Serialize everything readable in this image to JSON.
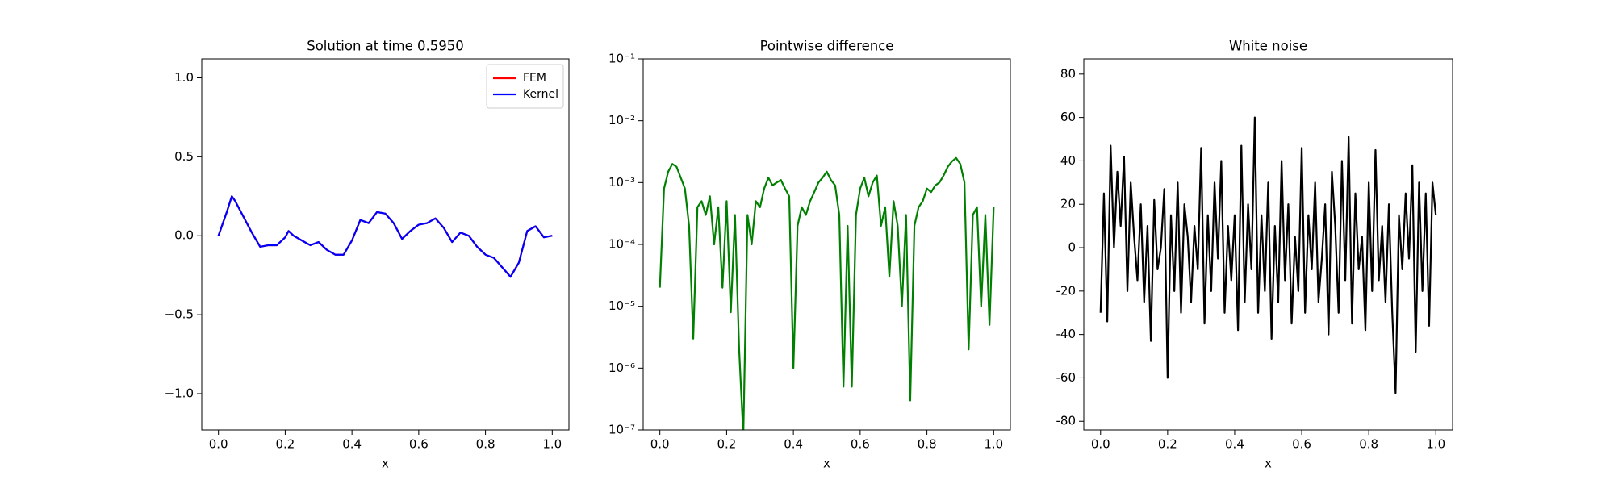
{
  "chart_data": [
    {
      "type": "line",
      "title": "Solution at time 0.5950",
      "xlabel": "x",
      "x": [
        0,
        0.025,
        0.04,
        0.05,
        0.075,
        0.1,
        0.125,
        0.15,
        0.175,
        0.2,
        0.21,
        0.225,
        0.25,
        0.275,
        0.3,
        0.325,
        0.35,
        0.375,
        0.4,
        0.425,
        0.45,
        0.475,
        0.5,
        0.525,
        0.55,
        0.575,
        0.6,
        0.625,
        0.65,
        0.675,
        0.7,
        0.725,
        0.75,
        0.775,
        0.8,
        0.825,
        0.85,
        0.875,
        0.9,
        0.925,
        0.95,
        0.975,
        1.0
      ],
      "series": [
        {
          "name": "FEM",
          "color": "#ff0000",
          "values": [
            0,
            0.15,
            0.25,
            0.22,
            0.12,
            0.02,
            -0.07,
            -0.06,
            -0.06,
            -0.01,
            0.03,
            0,
            -0.03,
            -0.06,
            -0.04,
            -0.09,
            -0.12,
            -0.12,
            -0.03,
            0.1,
            0.08,
            0.15,
            0.14,
            0.08,
            -0.02,
            0.03,
            0.07,
            0.08,
            0.11,
            0.05,
            -0.04,
            0.02,
            0,
            -0.07,
            -0.12,
            -0.14,
            -0.2,
            -0.26,
            -0.17,
            0.03,
            0.06,
            -0.01,
            0
          ]
        },
        {
          "name": "Kernel",
          "color": "#0000ff",
          "values": [
            0,
            0.15,
            0.25,
            0.22,
            0.12,
            0.02,
            -0.07,
            -0.06,
            -0.06,
            -0.01,
            0.03,
            0,
            -0.03,
            -0.06,
            -0.04,
            -0.09,
            -0.12,
            -0.12,
            -0.03,
            0.1,
            0.08,
            0.15,
            0.14,
            0.08,
            -0.02,
            0.03,
            0.07,
            0.08,
            0.11,
            0.05,
            -0.04,
            0.02,
            0,
            -0.07,
            -0.12,
            -0.14,
            -0.2,
            -0.26,
            -0.17,
            0.03,
            0.06,
            -0.01,
            0
          ]
        }
      ],
      "xlim": [
        -0.05,
        1.05
      ],
      "ylim": [
        -1.23,
        1.12
      ],
      "xticks": [
        {
          "value": 0,
          "label": "0.0"
        },
        {
          "value": 0.2,
          "label": "0.2"
        },
        {
          "value": 0.4,
          "label": "0.4"
        },
        {
          "value": 0.6,
          "label": "0.6"
        },
        {
          "value": 0.8,
          "label": "0.8"
        },
        {
          "value": 1,
          "label": "1.0"
        }
      ],
      "yticks": [
        {
          "value": -1,
          "label": "−1.0"
        },
        {
          "value": -0.5,
          "label": "−0.5"
        },
        {
          "value": 0,
          "label": "0.0"
        },
        {
          "value": 0.5,
          "label": "0.5"
        },
        {
          "value": 1,
          "label": "1.0"
        }
      ],
      "legend": "upper right"
    },
    {
      "type": "line",
      "title": "Pointwise difference",
      "xlabel": "x",
      "yscale": "log",
      "x": [
        0,
        0.0125,
        0.025,
        0.0375,
        0.05,
        0.0625,
        0.075,
        0.0875,
        0.1,
        0.1125,
        0.125,
        0.1375,
        0.15,
        0.1625,
        0.175,
        0.1875,
        0.2,
        0.2125,
        0.225,
        0.2375,
        0.25,
        0.2625,
        0.275,
        0.2875,
        0.3,
        0.3125,
        0.325,
        0.3375,
        0.35,
        0.3625,
        0.375,
        0.3875,
        0.4,
        0.4125,
        0.425,
        0.4375,
        0.45,
        0.4625,
        0.475,
        0.4875,
        0.5,
        0.5125,
        0.525,
        0.5375,
        0.55,
        0.5625,
        0.575,
        0.5875,
        0.6,
        0.6125,
        0.625,
        0.6375,
        0.65,
        0.6625,
        0.675,
        0.6875,
        0.7,
        0.7125,
        0.725,
        0.7375,
        0.75,
        0.7625,
        0.775,
        0.7875,
        0.8,
        0.8125,
        0.825,
        0.8375,
        0.85,
        0.8625,
        0.875,
        0.8875,
        0.9,
        0.9125,
        0.925,
        0.9375,
        0.95,
        0.9625,
        0.975,
        0.9875,
        1.0
      ],
      "series": [
        {
          "name": "Pointwise difference",
          "color": "#008000",
          "values": [
            2e-05,
            0.0008,
            0.0015,
            0.002,
            0.0018,
            0.0012,
            0.0008,
            0.0002,
            3e-06,
            0.0004,
            0.0005,
            0.0003,
            0.0006,
            0.0001,
            0.0004,
            2e-05,
            0.0005,
            8e-06,
            0.0003,
            2e-06,
            8e-08,
            0.0003,
            0.0001,
            0.0005,
            0.0004,
            0.0008,
            0.0012,
            0.0009,
            0.001,
            0.0011,
            0.0008,
            0.0006,
            1e-06,
            0.0002,
            0.0004,
            0.0003,
            0.0005,
            0.0007,
            0.001,
            0.0012,
            0.0015,
            0.0011,
            0.0009,
            0.0003,
            5e-07,
            0.0002,
            5e-07,
            0.0003,
            0.0008,
            0.0012,
            0.0006,
            0.001,
            0.0013,
            0.0002,
            0.0004,
            3e-05,
            0.0005,
            0.0002,
            1e-05,
            0.0003,
            3e-07,
            0.0002,
            0.0004,
            0.0005,
            0.0008,
            0.0007,
            0.0009,
            0.001,
            0.0013,
            0.0018,
            0.0022,
            0.0025,
            0.002,
            0.001,
            2e-06,
            0.0003,
            0.0004,
            1e-05,
            0.0003,
            5e-06,
            0.0004
          ]
        }
      ],
      "xlim": [
        -0.05,
        1.05
      ],
      "ylim": [
        1e-07,
        0.1
      ],
      "xticks": [
        {
          "value": 0,
          "label": "0.0"
        },
        {
          "value": 0.2,
          "label": "0.2"
        },
        {
          "value": 0.4,
          "label": "0.4"
        },
        {
          "value": 0.6,
          "label": "0.6"
        },
        {
          "value": 0.8,
          "label": "0.8"
        },
        {
          "value": 1,
          "label": "1.0"
        }
      ],
      "yticks": [
        {
          "value": 1e-07,
          "label": "10⁻⁷"
        },
        {
          "value": 1e-06,
          "label": "10⁻⁶"
        },
        {
          "value": 1e-05,
          "label": "10⁻⁵"
        },
        {
          "value": 0.0001,
          "label": "10⁻⁴"
        },
        {
          "value": 0.001,
          "label": "10⁻³"
        },
        {
          "value": 0.01,
          "label": "10⁻²"
        },
        {
          "value": 0.1,
          "label": "10⁻¹"
        }
      ]
    },
    {
      "type": "line",
      "title": "White noise",
      "xlabel": "x",
      "x": [
        0,
        0.01,
        0.02,
        0.03,
        0.04,
        0.05,
        0.06,
        0.07,
        0.08,
        0.09,
        0.1,
        0.11,
        0.12,
        0.13,
        0.14,
        0.15,
        0.16,
        0.17,
        0.18,
        0.19,
        0.2,
        0.21,
        0.22,
        0.23,
        0.24,
        0.25,
        0.26,
        0.27,
        0.28,
        0.29,
        0.3,
        0.31,
        0.32,
        0.33,
        0.34,
        0.35,
        0.36,
        0.37,
        0.38,
        0.39,
        0.4,
        0.41,
        0.42,
        0.43,
        0.44,
        0.45,
        0.46,
        0.47,
        0.48,
        0.49,
        0.5,
        0.51,
        0.52,
        0.53,
        0.54,
        0.55,
        0.56,
        0.57,
        0.58,
        0.59,
        0.6,
        0.61,
        0.62,
        0.63,
        0.64,
        0.65,
        0.66,
        0.67,
        0.68,
        0.69,
        0.7,
        0.71,
        0.72,
        0.73,
        0.74,
        0.75,
        0.76,
        0.77,
        0.78,
        0.79,
        0.8,
        0.81,
        0.82,
        0.83,
        0.84,
        0.85,
        0.86,
        0.87,
        0.88,
        0.89,
        0.9,
        0.91,
        0.92,
        0.93,
        0.94,
        0.95,
        0.96,
        0.97,
        0.98,
        0.99,
        1.0
      ],
      "series": [
        {
          "name": "White noise",
          "color": "#000000",
          "values": [
            -30,
            25,
            -34,
            47,
            0,
            35,
            10,
            42,
            -20,
            30,
            5,
            -15,
            20,
            -25,
            10,
            -43,
            22,
            -10,
            0,
            27,
            -60,
            15,
            -20,
            30,
            -30,
            20,
            5,
            -25,
            10,
            -10,
            46,
            -35,
            15,
            -20,
            30,
            -5,
            40,
            -30,
            10,
            -15,
            15,
            -38,
            47,
            -25,
            20,
            -10,
            60,
            -30,
            15,
            -20,
            30,
            -42,
            10,
            -25,
            40,
            -15,
            20,
            -35,
            5,
            -20,
            46,
            -30,
            15,
            -10,
            30,
            -25,
            -5,
            20,
            -40,
            35,
            10,
            -30,
            40,
            -15,
            51,
            -35,
            25,
            -10,
            5,
            -38,
            30,
            -20,
            45,
            -15,
            10,
            -25,
            20,
            -30,
            -67,
            15,
            -10,
            25,
            -5,
            38,
            -48,
            30,
            -20,
            25,
            -36,
            30,
            15
          ]
        }
      ],
      "xlim": [
        -0.05,
        1.05
      ],
      "ylim": [
        -84,
        87
      ],
      "xticks": [
        {
          "value": 0,
          "label": "0.0"
        },
        {
          "value": 0.2,
          "label": "0.2"
        },
        {
          "value": 0.4,
          "label": "0.4"
        },
        {
          "value": 0.6,
          "label": "0.6"
        },
        {
          "value": 0.8,
          "label": "0.8"
        },
        {
          "value": 1,
          "label": "1.0"
        }
      ],
      "yticks": [
        -80,
        -60,
        -40,
        -20,
        0,
        20,
        40,
        60,
        80
      ]
    }
  ]
}
